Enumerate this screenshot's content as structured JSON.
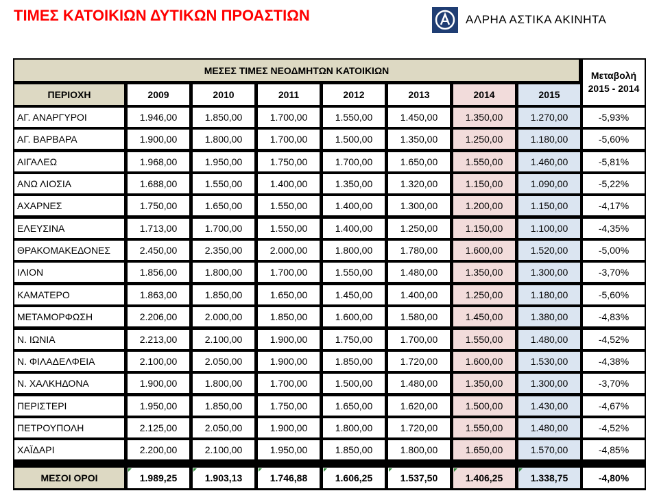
{
  "title": "ΤΙΜΕΣ ΚΑΤΟΙΚΙΩΝ ΔΥΤΙΚΩΝ ΠΡΟΑΣΤΙΩΝ",
  "logo": {
    "text": "ΑΛΡΗΑ ΑΣΤΙΚΑ ΑΚΙΝΗΤΑ",
    "icon": "alpha-bank-logo-icon",
    "color": "#1f3d73"
  },
  "table": {
    "caption": "ΜΕΣΕΣ ΤΙΜΕΣ ΝΕΟΔΜΗΤΩΝ ΚΑΤΟΙΚΙΩΝ",
    "area_header": "ΠΕΡΙΟΧΗ",
    "years": [
      "2009",
      "2010",
      "2011",
      "2012",
      "2013",
      "2014",
      "2015"
    ],
    "change_header": [
      "Μεταβολή",
      "2015 - 2014"
    ],
    "rows": [
      {
        "area": "ΑΓ. ΑΝΑΡΓΥΡΟΙ",
        "values": [
          "1.946,00",
          "1.850,00",
          "1.700,00",
          "1.550,00",
          "1.450,00",
          "1.350,00",
          "1.270,00"
        ],
        "change": "-5,93%"
      },
      {
        "area": "ΑΓ. ΒΑΡΒΑΡΑ",
        "values": [
          "1.900,00",
          "1.800,00",
          "1.700,00",
          "1.500,00",
          "1.350,00",
          "1.250,00",
          "1.180,00"
        ],
        "change": "-5,60%"
      },
      {
        "area": "ΑΙΓΑΛΕΩ",
        "values": [
          "1.968,00",
          "1.950,00",
          "1.750,00",
          "1.700,00",
          "1.650,00",
          "1.550,00",
          "1.460,00"
        ],
        "change": "-5,81%"
      },
      {
        "area": "ΑΝΩ ΛΙΟΣΙΑ",
        "values": [
          "1.688,00",
          "1.550,00",
          "1.400,00",
          "1.350,00",
          "1.320,00",
          "1.150,00",
          "1.090,00"
        ],
        "change": "-5,22%"
      },
      {
        "area": "ΑΧΑΡΝΕΣ",
        "values": [
          "1.750,00",
          "1.650,00",
          "1.550,00",
          "1.400,00",
          "1.300,00",
          "1.200,00",
          "1.150,00"
        ],
        "change": "-4,17%"
      },
      {
        "area": "ΕΛΕΥΣΙΝΑ",
        "values": [
          "1.713,00",
          "1.700,00",
          "1.550,00",
          "1.400,00",
          "1.250,00",
          "1.150,00",
          "1.100,00"
        ],
        "change": "-4,35%"
      },
      {
        "area": "ΘΡΑΚΟΜΑΚΕΔΟΝΕΣ",
        "values": [
          "2.450,00",
          "2.350,00",
          "2.000,00",
          "1.800,00",
          "1.780,00",
          "1.600,00",
          "1.520,00"
        ],
        "change": "-5,00%"
      },
      {
        "area": "ΙΛΙΟΝ",
        "values": [
          "1.856,00",
          "1.800,00",
          "1.700,00",
          "1.550,00",
          "1.480,00",
          "1.350,00",
          "1.300,00"
        ],
        "change": "-3,70%"
      },
      {
        "area": "ΚΑΜΑΤΕΡΟ",
        "values": [
          "1.863,00",
          "1.850,00",
          "1.650,00",
          "1.450,00",
          "1.400,00",
          "1.250,00",
          "1.180,00"
        ],
        "change": "-5,60%"
      },
      {
        "area": "ΜΕΤΑΜΟΡΦΩΣΗ",
        "values": [
          "2.206,00",
          "2.000,00",
          "1.850,00",
          "1.600,00",
          "1.580,00",
          "1.450,00",
          "1.380,00"
        ],
        "change": "-4,83%"
      },
      {
        "area": "Ν. ΙΩΝΙΑ",
        "values": [
          "2.213,00",
          "2.100,00",
          "1.900,00",
          "1.750,00",
          "1.700,00",
          "1.550,00",
          "1.480,00"
        ],
        "change": "-4,52%"
      },
      {
        "area": "Ν. ΦΙΛΑΔΕΛΦΕΙΑ",
        "values": [
          "2.100,00",
          "2.050,00",
          "1.900,00",
          "1.850,00",
          "1.720,00",
          "1.600,00",
          "1.530,00"
        ],
        "change": "-4,38%"
      },
      {
        "area": "Ν. ΧΑΛΚΗΔΟΝΑ",
        "values": [
          "1.900,00",
          "1.800,00",
          "1.700,00",
          "1.500,00",
          "1.480,00",
          "1.350,00",
          "1.300,00"
        ],
        "change": "-3,70%"
      },
      {
        "area": "ΠΕΡΙΣΤΕΡΙ",
        "values": [
          "1.950,00",
          "1.850,00",
          "1.750,00",
          "1.650,00",
          "1.620,00",
          "1.500,00",
          "1.430,00"
        ],
        "change": "-4,67%"
      },
      {
        "area": "ΠΕΤΡΟΥΠΟΛΗ",
        "values": [
          "2.125,00",
          "2.050,00",
          "1.900,00",
          "1.800,00",
          "1.720,00",
          "1.550,00",
          "1.480,00"
        ],
        "change": "-4,52%"
      },
      {
        "area": "ΧΑΪΔΑΡΙ",
        "values": [
          "2.200,00",
          "2.100,00",
          "1.950,00",
          "1.850,00",
          "1.800,00",
          "1.650,00",
          "1.570,00"
        ],
        "change": "-4,85%"
      }
    ],
    "totals": {
      "area": "ΜΕΣΟΙ ΟΡΟΙ",
      "values": [
        "1.989,25",
        "1.903,13",
        "1.746,88",
        "1.606,25",
        "1.537,50",
        "1.406,25",
        "1.338,75"
      ],
      "change": "-4,80%"
    },
    "colors": {
      "header_bg": "#ddd9c3",
      "col_2014_bg": "#f2dcdb",
      "col_2015_bg": "#dbe5f1",
      "title": "#ff0000"
    }
  }
}
